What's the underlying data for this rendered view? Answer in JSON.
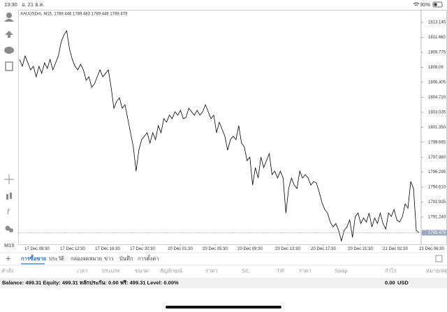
{
  "status_bar": {
    "time": "13:30",
    "date": "อ. 21 ธ.ค.",
    "battery": "30%"
  },
  "chart_data": {
    "type": "line",
    "title": "XAUUSDm, M15, 1789.446 1789.483 1789.446 1789.479",
    "timeframe": "M15",
    "x_labels": [
      "17 Dec 08:30",
      "17 Dec 12:30",
      "17 Dec 16:30",
      "17 Dec 20:30",
      "20 Dec 01:30",
      "20 Dec 05:30",
      "20 Dec 09:30",
      "20 Dec 13:30",
      "20 Dec 17:30",
      "20 Dec 21:30",
      "21 Dec 02:30",
      "21 Dec 06:30"
    ],
    "values": [
      1808.98,
      1808.2,
      1809.37,
      1808.59,
      1807.8,
      1808.2,
      1807.02,
      1808.2,
      1807.41,
      1808.59,
      1807.96,
      1808.98,
      1807.8,
      1808.59,
      1809.37,
      1810.95,
      1811.73,
      1812.2,
      1810.16,
      1808.98,
      1808.2,
      1807.8,
      1808.43,
      1807.8,
      1806.63,
      1807.02,
      1805.84,
      1806.23,
      1807.02,
      1807.8,
      1807.02,
      1807.41,
      1807.8,
      1805.84,
      1803.48,
      1804.27,
      1804.66,
      1803.48,
      1803.88,
      1802.31,
      1800.73,
      1799.16,
      1796.41,
      1798.77,
      1799.95,
      1800.34,
      1800.73,
      1799.56,
      1800.73,
      1799.95,
      1801.52,
      1800.73,
      1802.31,
      1801.91,
      1802.7,
      1802.31,
      1803.09,
      1802.7,
      1803.25,
      1802.31,
      1802.46,
      1803.48,
      1803.09,
      1802.7,
      1803.25,
      1802.7,
      1803.09,
      1803.88,
      1803.09,
      1802.31,
      1802.7,
      1800.73,
      1801.91,
      1801.13,
      1800.34,
      1798.77,
      1799.95,
      1800.34,
      1799.95,
      1801.52,
      1799.56,
      1799.16,
      1797.59,
      1797.99,
      1794.84,
      1796.81,
      1795.63,
      1797.99,
      1796.81,
      1797.59,
      1798.38,
      1796.02,
      1796.41,
      1795.63,
      1796.41,
      1795.63,
      1791.7,
      1794.45,
      1795.63,
      1794.84,
      1794.45,
      1796.41,
      1795.63,
      1796.02,
      1795.63,
      1794.84,
      1795.24,
      1795.08,
      1794.06,
      1792.88,
      1792.09,
      1791.7,
      1790.68,
      1790.13,
      1790.52,
      1789.74,
      1788.56,
      1789.74,
      1790.13,
      1790.92,
      1788.95,
      1791.31,
      1791.7,
      1790.52,
      1791.15,
      1790.68,
      1791.7,
      1790.13,
      1791.15,
      1790.52,
      1791.7,
      1790.52,
      1789.89,
      1791.7,
      1791.31,
      1792.09,
      1790.92,
      1790.68,
      1791.31,
      1792.72,
      1792.25,
      1795.24,
      1794.45,
      1789.74,
      1789.479
    ],
    "ylim": [
      1788.18,
      1814.56
    ],
    "yticks": [
      1813.145,
      {
        "value": 1811.46,
        "label": "1811.460"
      },
      1809.775,
      1808.09,
      1806.405,
      {
        "value": 1804.72,
        "label": "1804.720"
      },
      1803.035,
      {
        "value": 1801.35,
        "label": "1801.350"
      },
      1799.665,
      {
        "value": 1797.98,
        "label": "1797.980"
      },
      1796.295,
      {
        "value": 1794.61,
        "label": "1794.610"
      },
      1792.925,
      {
        "value": 1791.24,
        "label": "1791.240"
      }
    ],
    "current_price": 1789.479,
    "color": "#000000"
  },
  "tabs": [
    "การซื้อขาย",
    "ประวัติ",
    "กล่องจดหมาย",
    "ข่าว",
    "บันทึก",
    "การตั้งค่า"
  ],
  "columns": [
    "คำสั่ง",
    "เวลา",
    "ประเภท",
    "ขนาด",
    "สัญลักษณ์",
    "ราคา",
    "S/L",
    "T/P",
    "ราคา",
    "Swap",
    "กำไร",
    "หมายเหตุ"
  ],
  "account": {
    "summary": "Balance: 499.31 Equity: 499.31 หลักประกัน: 0.00 ฟรี: 499.31 Level: 0.00%",
    "profit": "0.00",
    "currency": "USD"
  }
}
